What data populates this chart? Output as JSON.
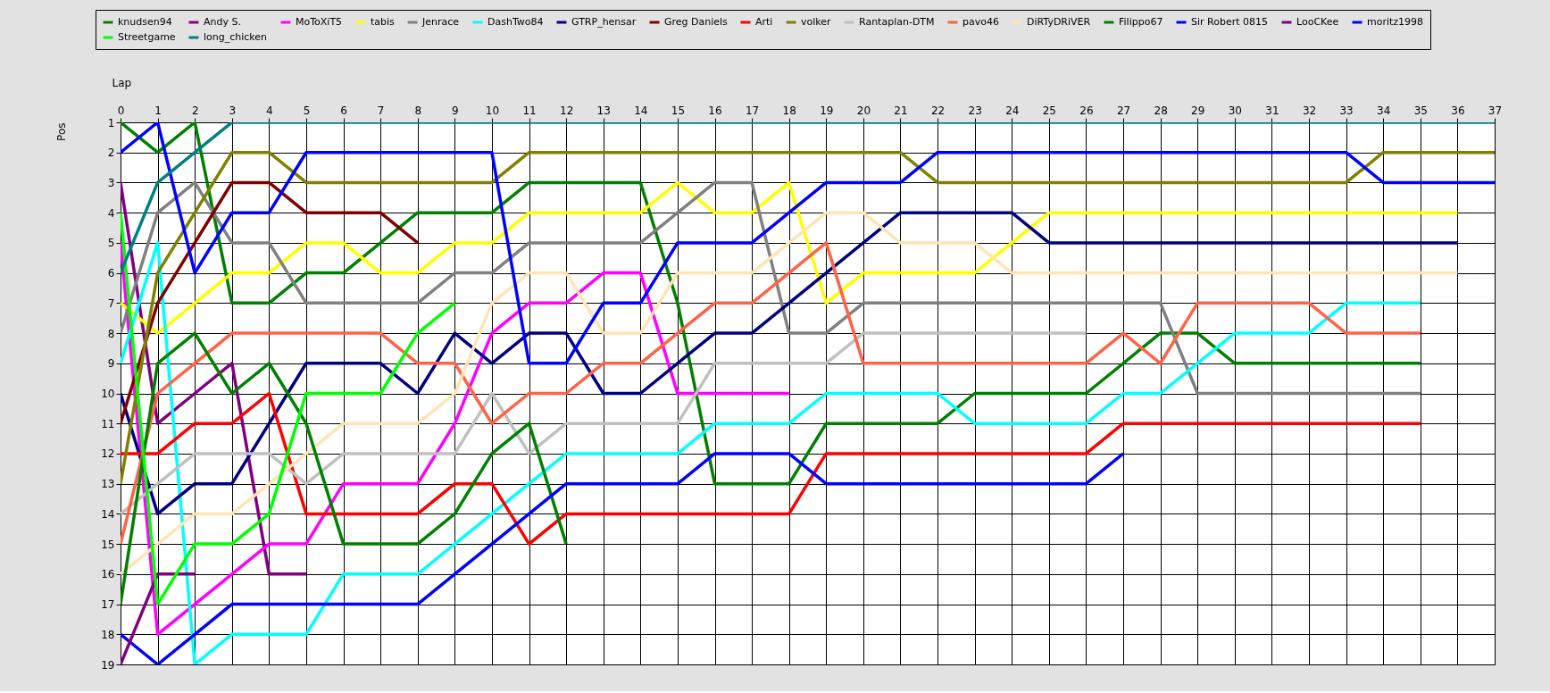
{
  "chart_data": {
    "type": "line",
    "xlabel": "Lap",
    "ylabel": "Pos",
    "x": [
      0,
      1,
      2,
      3,
      4,
      5,
      6,
      7,
      8,
      9,
      10,
      11,
      12,
      13,
      14,
      15,
      16,
      17,
      18,
      19,
      20,
      21,
      22,
      23,
      24,
      25,
      26,
      27,
      28,
      29,
      30,
      31,
      32,
      33,
      34,
      35,
      36,
      37
    ],
    "xlim": [
      0,
      37
    ],
    "xticks": [
      0,
      1,
      2,
      3,
      4,
      5,
      6,
      7,
      8,
      9,
      10,
      11,
      12,
      13,
      14,
      15,
      16,
      17,
      18,
      19,
      20,
      21,
      22,
      23,
      24,
      25,
      26,
      27,
      28,
      29,
      30,
      31,
      32,
      33,
      34,
      35,
      36,
      37
    ],
    "ylim": [
      19,
      1
    ],
    "yticks": [
      1,
      2,
      3,
      4,
      5,
      6,
      7,
      8,
      9,
      10,
      11,
      12,
      13,
      14,
      15,
      16,
      17,
      18,
      19
    ],
    "grid": true,
    "legend": "top",
    "series": [
      {
        "name": "knudsen94",
        "color": "#008000",
        "values": [
          1,
          2,
          1,
          7,
          7,
          6,
          6,
          5,
          4,
          4,
          4,
          3,
          3,
          3,
          3,
          7,
          13,
          13,
          13,
          11,
          11,
          11,
          11,
          10,
          10,
          10,
          10,
          9,
          8,
          8,
          9,
          9,
          9,
          9,
          9,
          9,
          null,
          null
        ]
      },
      {
        "name": "Andy S.",
        "color": "#800080",
        "values": [
          3,
          11,
          10,
          9,
          16,
          16,
          null,
          null,
          null,
          null,
          null,
          null,
          null,
          null,
          null,
          null,
          null,
          null,
          null,
          null,
          null,
          null,
          null,
          null,
          null,
          null,
          null,
          null,
          null,
          null,
          null,
          null,
          null,
          null,
          null,
          null,
          null,
          null
        ]
      },
      {
        "name": "MoToXiT5",
        "color": "#ff00ff",
        "values": [
          5,
          18,
          17,
          16,
          15,
          15,
          13,
          13,
          13,
          11,
          8,
          7,
          7,
          6,
          6,
          10,
          10,
          10,
          10,
          null,
          null,
          null,
          null,
          null,
          null,
          null,
          null,
          null,
          null,
          null,
          null,
          null,
          null,
          null,
          null,
          null,
          null,
          null
        ]
      },
      {
        "name": "tabis",
        "color": "#ffff00",
        "values": [
          7,
          8,
          7,
          6,
          6,
          5,
          5,
          6,
          6,
          5,
          5,
          4,
          4,
          4,
          4,
          3,
          4,
          4,
          3,
          7,
          6,
          6,
          6,
          6,
          5,
          4,
          4,
          4,
          4,
          4,
          4,
          4,
          4,
          4,
          4,
          4,
          4,
          null
        ]
      },
      {
        "name": "Jenrace",
        "color": "#808080",
        "values": [
          8,
          4,
          3,
          5,
          5,
          7,
          7,
          7,
          7,
          6,
          6,
          5,
          5,
          5,
          5,
          4,
          3,
          3,
          8,
          8,
          7,
          7,
          7,
          7,
          7,
          7,
          7,
          7,
          7,
          10,
          10,
          10,
          10,
          10,
          10,
          10,
          null,
          null
        ]
      },
      {
        "name": "DashTwo84",
        "color": "#00ffff",
        "values": [
          9,
          5,
          19,
          18,
          18,
          18,
          16,
          16,
          16,
          15,
          14,
          13,
          12,
          12,
          12,
          12,
          11,
          11,
          11,
          10,
          10,
          10,
          10,
          11,
          11,
          11,
          11,
          10,
          10,
          9,
          8,
          8,
          8,
          7,
          7,
          7,
          null,
          null
        ]
      },
      {
        "name": "GTRP_hensar",
        "color": "#000080",
        "values": [
          10,
          14,
          13,
          13,
          11,
          9,
          9,
          9,
          10,
          8,
          9,
          8,
          8,
          10,
          10,
          9,
          8,
          8,
          7,
          6,
          5,
          4,
          4,
          4,
          4,
          5,
          5,
          5,
          5,
          5,
          5,
          5,
          5,
          5,
          5,
          5,
          5,
          null
        ]
      },
      {
        "name": "Greg Daniels",
        "color": "#800000",
        "values": [
          11,
          7,
          5,
          3,
          3,
          4,
          4,
          4,
          5,
          null,
          null,
          null,
          null,
          null,
          null,
          null,
          null,
          null,
          null,
          null,
          null,
          null,
          null,
          null,
          null,
          null,
          null,
          null,
          null,
          null,
          null,
          null,
          null,
          null,
          null,
          null,
          null,
          null
        ]
      },
      {
        "name": "Arti",
        "color": "#ff0000",
        "values": [
          12,
          12,
          11,
          11,
          10,
          14,
          14,
          14,
          14,
          13,
          13,
          15,
          14,
          14,
          14,
          14,
          14,
          14,
          14,
          12,
          12,
          12,
          12,
          12,
          12,
          12,
          12,
          11,
          11,
          11,
          11,
          11,
          11,
          11,
          11,
          11,
          null,
          null
        ]
      },
      {
        "name": "volker",
        "color": "#808000",
        "values": [
          13,
          6,
          4,
          2,
          2,
          3,
          3,
          3,
          3,
          3,
          3,
          2,
          2,
          2,
          2,
          2,
          2,
          2,
          2,
          2,
          2,
          2,
          3,
          3,
          3,
          3,
          3,
          3,
          3,
          3,
          3,
          3,
          3,
          3,
          2,
          2,
          2,
          2
        ]
      },
      {
        "name": "Rantaplan-DTM",
        "color": "#c0c0c0",
        "values": [
          14,
          13,
          12,
          12,
          12,
          13,
          12,
          12,
          12,
          12,
          10,
          12,
          11,
          11,
          11,
          11,
          9,
          9,
          9,
          9,
          8,
          8,
          8,
          8,
          8,
          8,
          8,
          null,
          null,
          null,
          null,
          null,
          null,
          null,
          null,
          null,
          null,
          null
        ]
      },
      {
        "name": "pavo46",
        "color": "#ff6347",
        "values": [
          15,
          10,
          9,
          8,
          8,
          8,
          8,
          8,
          9,
          9,
          11,
          10,
          10,
          9,
          9,
          8,
          7,
          7,
          6,
          5,
          9,
          9,
          9,
          9,
          9,
          9,
          9,
          8,
          9,
          7,
          7,
          7,
          7,
          8,
          8,
          8,
          null,
          null
        ]
      },
      {
        "name": "DiRTyDRiVER",
        "color": "#ffe4b5",
        "values": [
          16,
          15,
          14,
          14,
          13,
          12,
          11,
          11,
          11,
          10,
          7,
          6,
          6,
          8,
          8,
          6,
          6,
          6,
          5,
          4,
          4,
          5,
          5,
          5,
          6,
          6,
          6,
          6,
          6,
          6,
          6,
          6,
          6,
          6,
          6,
          6,
          6,
          null
        ]
      },
      {
        "name": "Filippo67",
        "color": "#008000",
        "values": [
          17,
          9,
          8,
          10,
          9,
          11,
          15,
          15,
          15,
          14,
          12,
          11,
          15,
          null,
          null,
          null,
          null,
          null,
          null,
          null,
          null,
          null,
          null,
          null,
          null,
          null,
          null,
          null,
          null,
          null,
          null,
          null,
          null,
          null,
          null,
          null,
          null,
          null
        ]
      },
      {
        "name": "Sir Robert 0815",
        "color": "#0000ff",
        "values": [
          18,
          19,
          18,
          17,
          17,
          17,
          17,
          17,
          17,
          16,
          15,
          14,
          13,
          13,
          13,
          13,
          12,
          12,
          12,
          13,
          13,
          13,
          13,
          13,
          13,
          13,
          13,
          12,
          null,
          null,
          null,
          null,
          null,
          null,
          null,
          null,
          null,
          null
        ]
      },
      {
        "name": "LooCKee",
        "color": "#800080",
        "values": [
          19,
          16,
          16,
          null,
          null,
          null,
          null,
          null,
          null,
          null,
          null,
          null,
          null,
          null,
          null,
          null,
          null,
          null,
          null,
          null,
          null,
          null,
          null,
          null,
          null,
          null,
          null,
          null,
          null,
          null,
          null,
          null,
          null,
          null,
          null,
          null,
          null,
          null
        ]
      },
      {
        "name": "moritz1998",
        "color": "#0000ff",
        "values": [
          2,
          1,
          6,
          4,
          4,
          2,
          2,
          2,
          2,
          2,
          2,
          9,
          9,
          7,
          7,
          5,
          5,
          5,
          4,
          3,
          3,
          3,
          2,
          2,
          2,
          2,
          2,
          2,
          2,
          2,
          2,
          2,
          2,
          2,
          3,
          3,
          3,
          3
        ]
      },
      {
        "name": "Streetgame",
        "color": "#00ff00",
        "values": [
          4,
          17,
          15,
          15,
          14,
          10,
          10,
          10,
          8,
          7,
          null,
          null,
          null,
          null,
          null,
          null,
          null,
          null,
          null,
          null,
          null,
          null,
          null,
          null,
          null,
          null,
          null,
          null,
          null,
          null,
          null,
          null,
          null,
          null,
          null,
          null,
          null,
          null
        ]
      },
      {
        "name": "long_chicken",
        "color": "#008080",
        "values": [
          6,
          3,
          2,
          1,
          1,
          1,
          1,
          1,
          1,
          1,
          1,
          1,
          1,
          1,
          1,
          1,
          1,
          1,
          1,
          1,
          1,
          1,
          1,
          1,
          1,
          1,
          1,
          1,
          1,
          1,
          1,
          1,
          1,
          1,
          1,
          1,
          1,
          1
        ]
      }
    ]
  }
}
